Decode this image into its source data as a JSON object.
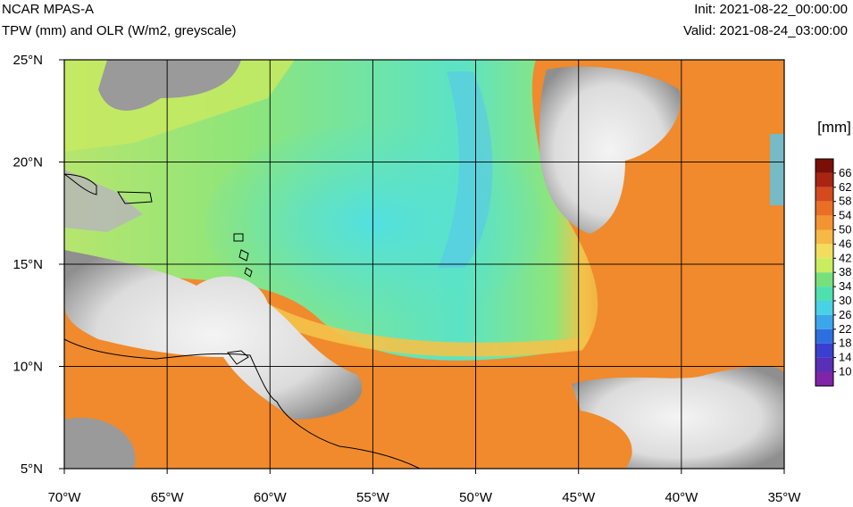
{
  "header": {
    "model": "NCAR MPAS-A",
    "field": "TPW (mm) and OLR (W/m2, greyscale)",
    "init": "Init: 2021-08-22_00:00:00",
    "valid": "Valid: 2021-08-24_03:00:00"
  },
  "map": {
    "lon_range": [
      -70,
      -35
    ],
    "lat_range": [
      5,
      25
    ],
    "lon_ticks": [
      {
        "value": -70,
        "label": "70°W"
      },
      {
        "value": -65,
        "label": "65°W"
      },
      {
        "value": -60,
        "label": "60°W"
      },
      {
        "value": -55,
        "label": "55°W"
      },
      {
        "value": -50,
        "label": "50°W"
      },
      {
        "value": -45,
        "label": "45°W"
      },
      {
        "value": -40,
        "label": "40°W"
      },
      {
        "value": -35,
        "label": "35°W"
      }
    ],
    "lat_ticks": [
      {
        "value": 25,
        "label": "25°N"
      },
      {
        "value": 20,
        "label": "20°N"
      },
      {
        "value": 15,
        "label": "15°N"
      },
      {
        "value": 10,
        "label": "10°N"
      },
      {
        "value": 5,
        "label": "5°N"
      }
    ],
    "gridlines": true
  },
  "colorbar": {
    "units": "[mm]",
    "levels": [
      66,
      62,
      58,
      54,
      50,
      46,
      42,
      38,
      34,
      30,
      26,
      22,
      18,
      14,
      10
    ],
    "colors": [
      "#7a0f08",
      "#a82512",
      "#d5491e",
      "#ea6f24",
      "#f49332",
      "#f7b845",
      "#f2dd5e",
      "#c9ec61",
      "#78e07a",
      "#4fe0b0",
      "#49d2e6",
      "#3ca6ec",
      "#2e6fe0",
      "#3a3fcf",
      "#5a2fb7",
      "#8025a8"
    ]
  },
  "fields": {
    "palette": {
      "orange": "#f08a2c",
      "yellow": "#f3c24a",
      "green": "#8ee57a",
      "cyan": "#5be3c6",
      "blue": "#58c5ee",
      "cloud_light": "#f0f0f0",
      "cloud_dark": "#8c8c8c"
    }
  }
}
